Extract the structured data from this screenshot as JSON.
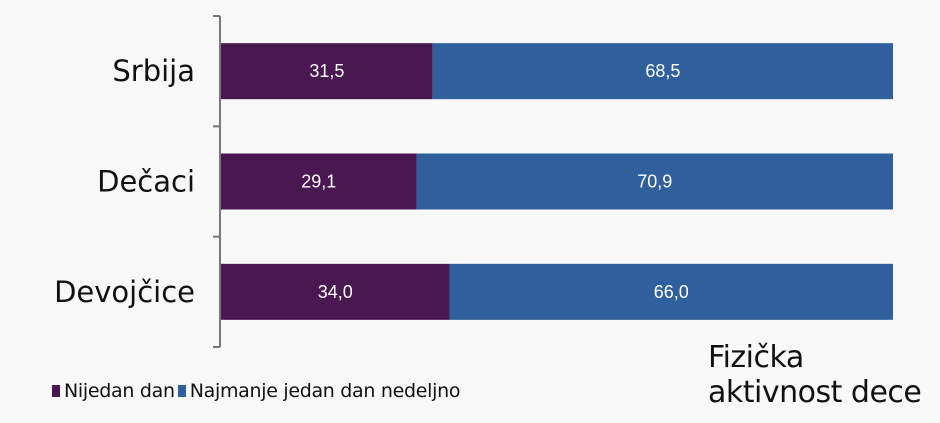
{
  "chart_data": {
    "type": "bar",
    "orientation": "horizontal",
    "stacked": true,
    "title": "Fizička aktivnost dece",
    "categories": [
      "Srbija",
      "Dečaci",
      "Devojčice"
    ],
    "series": [
      {
        "name": "Nijedan dan",
        "values": [
          31.5,
          29.1,
          34.0
        ],
        "labels": [
          "31,5",
          "29,1",
          "34,0"
        ],
        "color": "#4a1850"
      },
      {
        "name": "Najmanje jedan dan nedeljno",
        "values": [
          68.5,
          70.9,
          66.0
        ],
        "labels": [
          "68,5",
          "70,9",
          "66,0"
        ],
        "color": "#2f5f9c"
      }
    ],
    "xlim": [
      0,
      100
    ],
    "grid": false,
    "legend": "bottom-left"
  }
}
